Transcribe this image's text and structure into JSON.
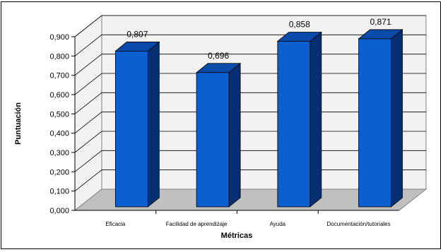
{
  "chart_data": {
    "type": "bar",
    "categories": [
      "Eficacia",
      "Facilidad de aprendizaje",
      "Ayuda",
      "Documentación/tutoriales"
    ],
    "values": [
      0.807,
      0.696,
      0.858,
      0.871
    ],
    "data_labels": [
      "0,807",
      "0,696",
      "0,858",
      "0,871"
    ],
    "xlabel": "Métricas",
    "ylabel": "Puntuación",
    "ylim": [
      0,
      0.9
    ],
    "yticks": [
      "0,000",
      "0,100",
      "0,200",
      "0,300",
      "0,400",
      "0,500",
      "0,600",
      "0,700",
      "0,800",
      "0,900"
    ],
    "grid": true,
    "legend": "none",
    "colors": {
      "bar_front": "#0b5fcf",
      "bar_side": "#062f73",
      "bar_top": "#0a4aa8",
      "wall": "#f2f2f2",
      "floor": "#c0c0c0",
      "grid": "#000000"
    }
  }
}
